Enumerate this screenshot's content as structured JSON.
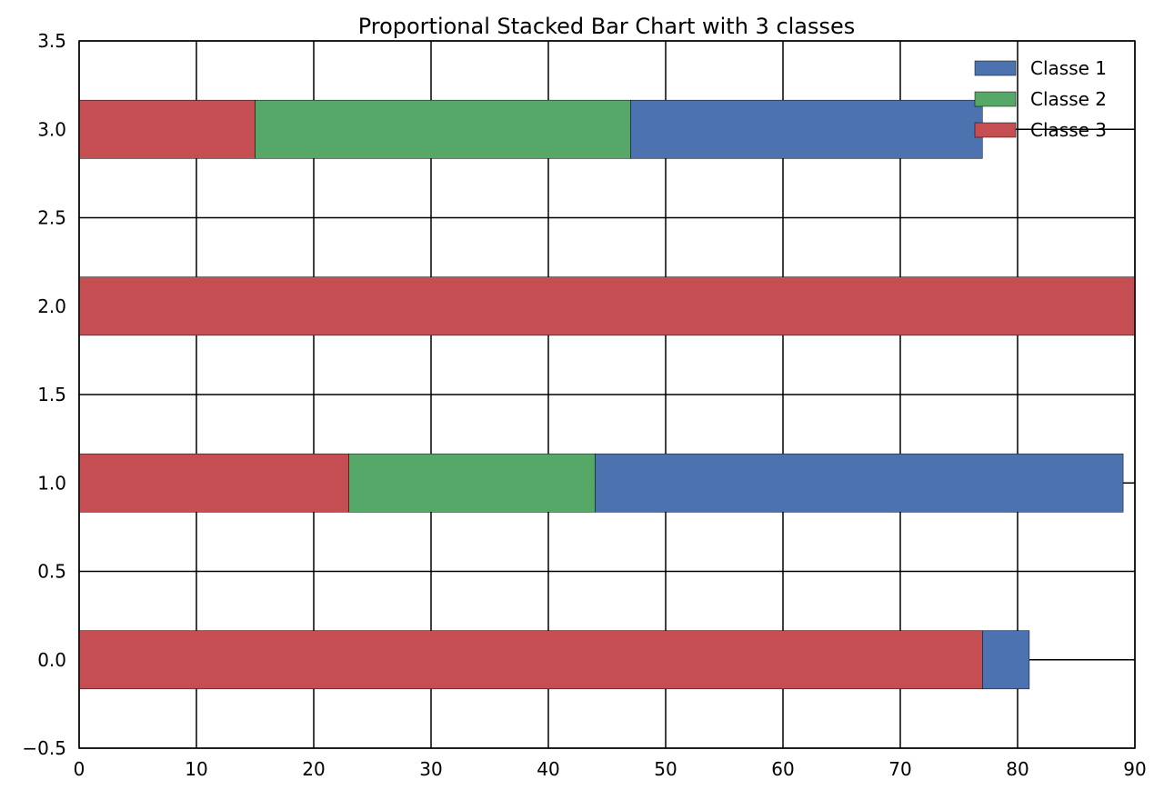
{
  "chart_data": {
    "type": "bar",
    "orientation": "horizontal",
    "stacked": true,
    "title": "Proportional Stacked Bar Chart with 3 classes",
    "xlabel": "",
    "ylabel": "",
    "xlim": [
      0,
      90
    ],
    "ylim": [
      -0.5,
      3.5
    ],
    "x_ticks": [
      0,
      10,
      20,
      30,
      40,
      50,
      60,
      70,
      80,
      90
    ],
    "x_tick_labels": [
      "0",
      "10",
      "20",
      "30",
      "40",
      "50",
      "60",
      "70",
      "80",
      "90"
    ],
    "y_ticks": [
      -0.5,
      0,
      0.5,
      1,
      1.5,
      2,
      2.5,
      3,
      3.5
    ],
    "y_tick_labels": [
      "−0.5",
      "0.0",
      "0.5",
      "1.0",
      "1.5",
      "2.0",
      "2.5",
      "3.0",
      "3.5"
    ],
    "grid": true,
    "legend_position": "top-right",
    "bar_height": 0.33,
    "y": [
      0,
      1,
      2,
      3
    ],
    "stack_order": [
      "Classe 3",
      "Classe 2",
      "Classe 1"
    ],
    "series": [
      {
        "name": "Classe 1",
        "color": "#4c72b0",
        "values": [
          4,
          45,
          0,
          30
        ]
      },
      {
        "name": "Classe 2",
        "color": "#55a868",
        "values": [
          0,
          21,
          0,
          32
        ]
      },
      {
        "name": "Classe 3",
        "color": "#c44e52",
        "values": [
          77,
          23,
          90,
          15
        ]
      }
    ]
  }
}
